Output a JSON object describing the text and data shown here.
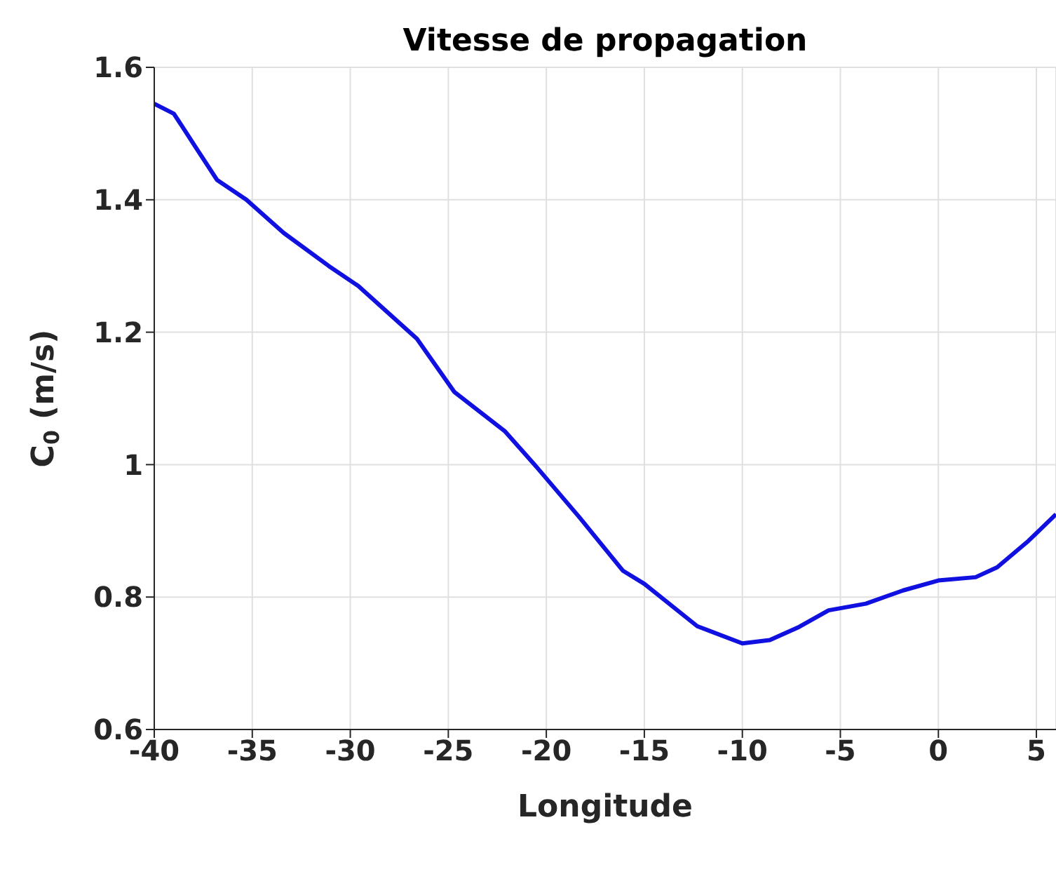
{
  "chart_data": {
    "type": "line",
    "title": "Vitesse de propagation",
    "xlabel": "Longitude",
    "ylabel": "C$_{0}$ (m/s)",
    "x": [
      -40,
      -39,
      -37.9,
      -36.8,
      -35.3,
      -33.4,
      -31.1,
      -29.6,
      -28.1,
      -26.6,
      -24.7,
      -22.1,
      -20.6,
      -18.3,
      -16.1,
      -15,
      -12.3,
      -10,
      -8.6,
      -7.1,
      -5.6,
      -3.7,
      -1.8,
      0,
      1.9,
      3,
      4.6,
      6
    ],
    "series": [
      {
        "color": "#1010e0",
        "values": [
          1.545,
          1.53,
          1.48,
          1.43,
          1.4,
          1.35,
          1.3,
          1.27,
          1.23,
          1.19,
          1.11,
          1.05,
          1.0,
          0.92,
          0.84,
          0.82,
          0.756,
          0.73,
          0.735,
          0.755,
          0.78,
          0.79,
          0.81,
          0.825,
          0.83,
          0.845,
          0.885,
          0.925
        ]
      }
    ],
    "xlim": [
      -40,
      6
    ],
    "xticks": [
      -40,
      -35,
      -30,
      -25,
      -20,
      -15,
      -10,
      -5,
      0,
      5
    ],
    "ylim": [
      0.6,
      1.6
    ],
    "yticks": [
      0.6,
      0.8,
      1,
      1.2,
      1.4,
      1.6
    ],
    "grid": true,
    "marker": "none",
    "line_style": "solid"
  }
}
